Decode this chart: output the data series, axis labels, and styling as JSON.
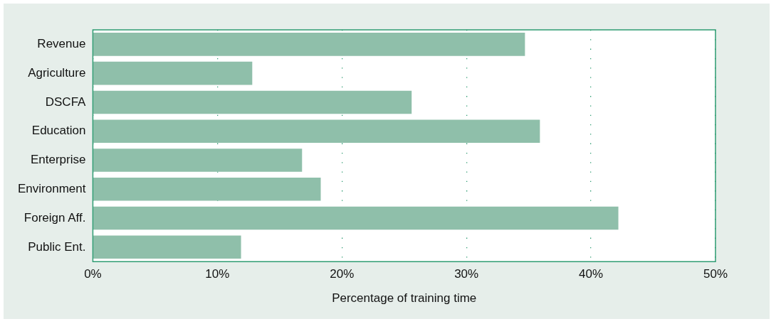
{
  "chart_data": {
    "type": "bar",
    "orientation": "horizontal",
    "xlabel": "Percentage of training time",
    "categories": [
      "Revenue",
      "Agriculture",
      "DSCFA",
      "Education",
      "Enterprise",
      "Environment",
      "Foreign Aff.",
      "Public Ent."
    ],
    "values": [
      34.7,
      12.8,
      25.6,
      35.9,
      16.8,
      18.3,
      42.2,
      11.9
    ],
    "color": "#8fbfaa",
    "xlim": [
      0,
      50
    ],
    "xticks": [
      {
        "value": 0,
        "label": "0%"
      },
      {
        "value": 10,
        "label": "10%"
      },
      {
        "value": 20,
        "label": "20%"
      },
      {
        "value": 30,
        "label": "30%"
      },
      {
        "value": 40,
        "label": "40%"
      },
      {
        "value": 50,
        "label": "50%"
      }
    ],
    "grid": "x",
    "legend": false
  }
}
